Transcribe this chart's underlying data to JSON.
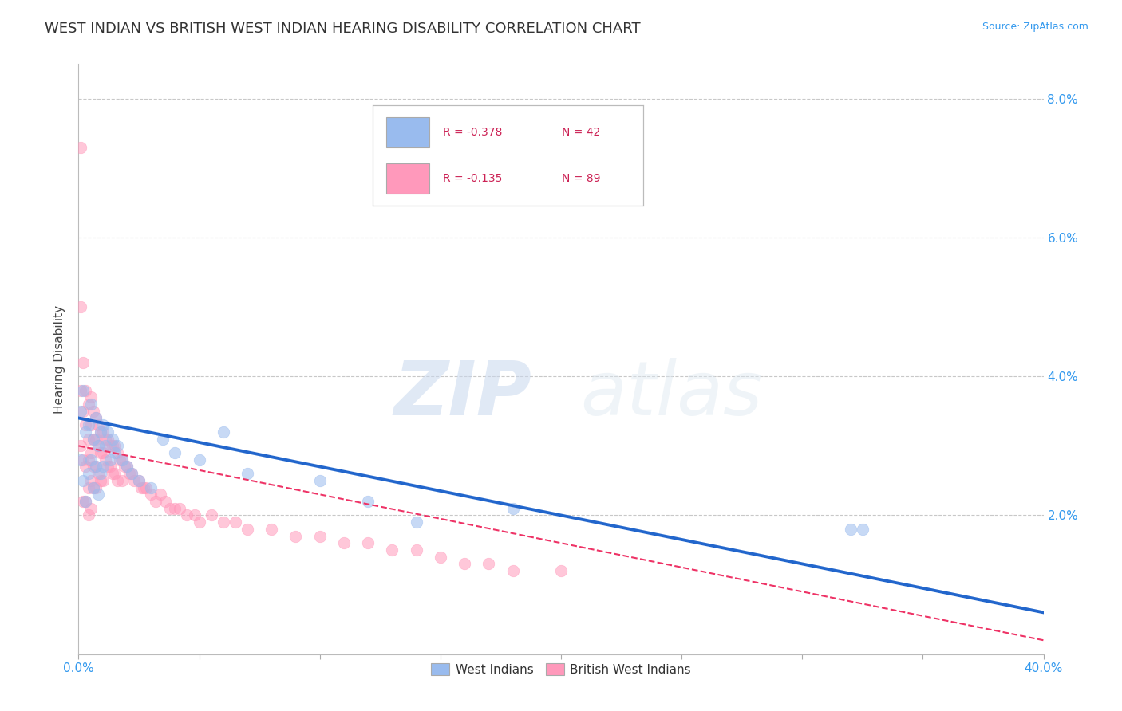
{
  "title": "WEST INDIAN VS BRITISH WEST INDIAN HEARING DISABILITY CORRELATION CHART",
  "source": "Source: ZipAtlas.com",
  "ylabel": "Hearing Disability",
  "xlim": [
    0.0,
    0.4
  ],
  "ylim": [
    0.0,
    0.085
  ],
  "xticks": [
    0.0,
    0.05,
    0.1,
    0.15,
    0.2,
    0.25,
    0.3,
    0.35,
    0.4
  ],
  "xticklabels": [
    "0.0%",
    "",
    "",
    "",
    "",
    "",
    "",
    "",
    "40.0%"
  ],
  "yticks": [
    0.0,
    0.02,
    0.04,
    0.06,
    0.08
  ],
  "yticklabels_right": [
    "",
    "2.0%",
    "4.0%",
    "6.0%",
    "8.0%"
  ],
  "grid_color": "#c8c8c8",
  "background_color": "#ffffff",
  "blue_color": "#99bbee",
  "pink_color": "#ff99bb",
  "blue_line_color": "#2266cc",
  "pink_line_color": "#ee3366",
  "legend_R_blue": "R = -0.378",
  "legend_N_blue": "N = 42",
  "legend_R_pink": "R = -0.135",
  "legend_N_pink": "N = 89",
  "title_fontsize": 13,
  "axis_label_fontsize": 11,
  "tick_fontsize": 11,
  "watermark_zip": "ZIP",
  "watermark_atlas": "atlas",
  "blue_line_start_y": 0.034,
  "blue_line_end_y": 0.006,
  "pink_line_start_y": 0.03,
  "pink_line_end_y": 0.002,
  "west_indian_x": [
    0.001,
    0.001,
    0.002,
    0.002,
    0.003,
    0.003,
    0.004,
    0.004,
    0.005,
    0.005,
    0.006,
    0.006,
    0.007,
    0.007,
    0.008,
    0.008,
    0.009,
    0.009,
    0.01,
    0.01,
    0.011,
    0.012,
    0.013,
    0.014,
    0.015,
    0.016,
    0.018,
    0.02,
    0.022,
    0.025,
    0.03,
    0.035,
    0.04,
    0.05,
    0.06,
    0.07,
    0.1,
    0.12,
    0.14,
    0.18,
    0.32,
    0.325
  ],
  "west_indian_y": [
    0.035,
    0.028,
    0.038,
    0.025,
    0.032,
    0.022,
    0.033,
    0.026,
    0.036,
    0.028,
    0.031,
    0.024,
    0.034,
    0.027,
    0.03,
    0.023,
    0.032,
    0.026,
    0.033,
    0.027,
    0.03,
    0.032,
    0.028,
    0.031,
    0.029,
    0.03,
    0.028,
    0.027,
    0.026,
    0.025,
    0.024,
    0.031,
    0.029,
    0.028,
    0.032,
    0.026,
    0.025,
    0.022,
    0.019,
    0.021,
    0.018,
    0.018
  ],
  "british_west_indian_x": [
    0.001,
    0.001,
    0.001,
    0.002,
    0.002,
    0.002,
    0.002,
    0.003,
    0.003,
    0.003,
    0.003,
    0.004,
    0.004,
    0.004,
    0.004,
    0.004,
    0.005,
    0.005,
    0.005,
    0.005,
    0.005,
    0.006,
    0.006,
    0.006,
    0.006,
    0.007,
    0.007,
    0.007,
    0.007,
    0.008,
    0.008,
    0.008,
    0.009,
    0.009,
    0.009,
    0.01,
    0.01,
    0.01,
    0.011,
    0.011,
    0.012,
    0.012,
    0.013,
    0.013,
    0.014,
    0.014,
    0.015,
    0.015,
    0.016,
    0.016,
    0.017,
    0.018,
    0.018,
    0.019,
    0.02,
    0.021,
    0.022,
    0.023,
    0.025,
    0.026,
    0.027,
    0.028,
    0.03,
    0.032,
    0.034,
    0.036,
    0.038,
    0.04,
    0.042,
    0.045,
    0.048,
    0.05,
    0.055,
    0.06,
    0.065,
    0.07,
    0.08,
    0.09,
    0.1,
    0.11,
    0.12,
    0.13,
    0.14,
    0.15,
    0.16,
    0.17,
    0.18,
    0.2,
    0.001
  ],
  "british_west_indian_y": [
    0.073,
    0.038,
    0.03,
    0.042,
    0.035,
    0.028,
    0.022,
    0.038,
    0.033,
    0.027,
    0.022,
    0.036,
    0.031,
    0.028,
    0.024,
    0.02,
    0.037,
    0.033,
    0.029,
    0.025,
    0.021,
    0.035,
    0.031,
    0.027,
    0.024,
    0.034,
    0.031,
    0.027,
    0.024,
    0.033,
    0.03,
    0.026,
    0.032,
    0.029,
    0.025,
    0.032,
    0.029,
    0.025,
    0.031,
    0.028,
    0.031,
    0.027,
    0.03,
    0.027,
    0.03,
    0.026,
    0.03,
    0.026,
    0.029,
    0.025,
    0.028,
    0.028,
    0.025,
    0.027,
    0.027,
    0.026,
    0.026,
    0.025,
    0.025,
    0.024,
    0.024,
    0.024,
    0.023,
    0.022,
    0.023,
    0.022,
    0.021,
    0.021,
    0.021,
    0.02,
    0.02,
    0.019,
    0.02,
    0.019,
    0.019,
    0.018,
    0.018,
    0.017,
    0.017,
    0.016,
    0.016,
    0.015,
    0.015,
    0.014,
    0.013,
    0.013,
    0.012,
    0.012,
    0.05
  ]
}
